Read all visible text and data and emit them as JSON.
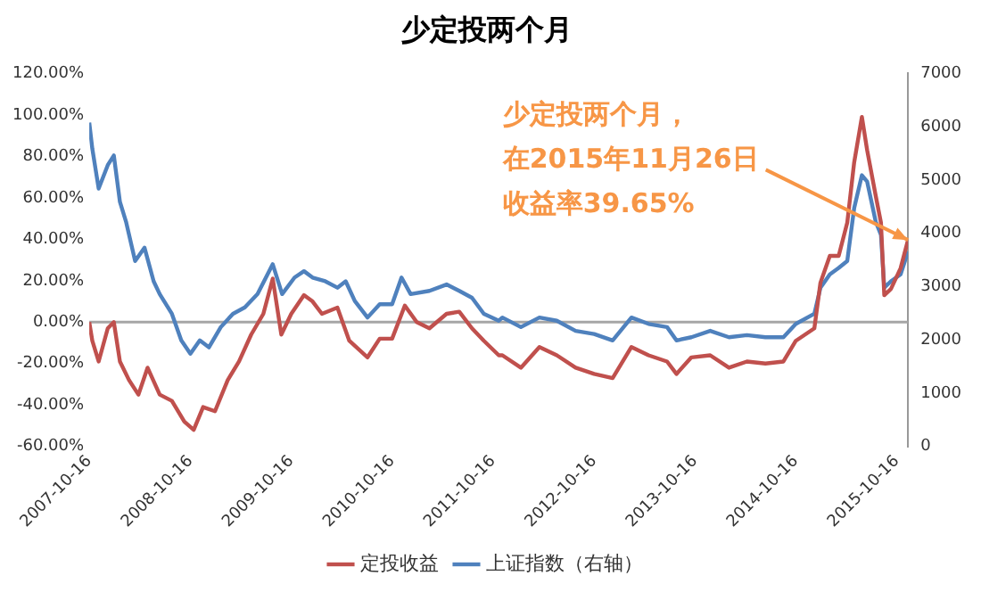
{
  "chart_data": {
    "type": "line",
    "title": "少定投两个月",
    "legend": "bottom",
    "grid": false,
    "marker": "none",
    "line_style": "solid",
    "xlim": [
      "2007-10-16",
      "2015-11-26"
    ],
    "xticks": [
      "2007-10-16",
      "2008-10-16",
      "2009-10-16",
      "2010-10-16",
      "2011-10-16",
      "2012-10-16",
      "2013-10-16",
      "2014-10-16",
      "2015-10-16"
    ],
    "ylim": [
      -60,
      120
    ],
    "yticks": [
      {
        "value": -60,
        "label": "-60.00%"
      },
      {
        "value": -40,
        "label": "-40.00%"
      },
      {
        "value": -20,
        "label": "-20.00%"
      },
      {
        "value": 0,
        "label": "0.00%"
      },
      {
        "value": 20,
        "label": "20.00%"
      },
      {
        "value": 40,
        "label": "40.00%"
      },
      {
        "value": 60,
        "label": "60.00%"
      },
      {
        "value": 80,
        "label": "80.00%"
      },
      {
        "value": 100,
        "label": "100.00%"
      },
      {
        "value": 120,
        "label": "120.00%"
      }
    ],
    "y2lim": [
      0,
      7000
    ],
    "y2ticks": [
      0,
      1000,
      2000,
      3000,
      4000,
      5000,
      6000,
      7000
    ],
    "ref_lines": [
      {
        "axis": "y",
        "value": 0,
        "color": "#a6a6a6"
      }
    ],
    "annotations": [
      {
        "text": "少定投两个月，在2015年11月26日收益率39.65%",
        "x": "2015-11-26",
        "y": 39.65
      }
    ],
    "series": [
      {
        "name": "定投收益",
        "color": "#c0504d",
        "x": [
          "2007-10-16",
          "2007-10-27",
          "2007-11-19",
          "2007-12-22",
          "2008-01-13",
          "2008-02-04",
          "2008-03-08",
          "2008-04-11",
          "2008-05-14",
          "2008-06-27",
          "2008-08-10",
          "2008-09-24",
          "2008-10-28",
          "2008-12-01",
          "2009-01-13",
          "2009-02-28",
          "2009-04-10",
          "2009-05-24",
          "2009-07-07",
          "2009-08-10",
          "2009-09-10",
          "2009-10-16",
          "2009-12-01",
          "2010-01-01",
          "2010-02-04",
          "2010-04-01",
          "2010-05-14",
          "2010-07-19",
          "2010-09-01",
          "2010-10-16",
          "2010-12-01",
          "2011-01-13",
          "2011-02-28",
          "2011-05-01",
          "2011-06-16",
          "2011-08-01",
          "2011-09-13",
          "2011-11-06",
          "2011-11-19",
          "2012-01-25",
          "2012-04-01",
          "2012-06-03",
          "2012-08-10",
          "2012-10-16",
          "2012-12-22",
          "2013-02-28",
          "2013-05-01",
          "2013-07-07",
          "2013-08-10",
          "2013-10-03",
          "2013-12-10",
          "2014-02-16",
          "2014-04-22",
          "2014-06-28",
          "2014-09-01",
          "2014-10-16",
          "2014-12-22",
          "2015-01-13",
          "2015-02-16",
          "2015-03-20",
          "2015-04-20",
          "2015-05-15",
          "2015-06-12",
          "2015-07-01",
          "2015-08-01",
          "2015-08-20",
          "2015-09-01",
          "2015-09-25",
          "2015-10-30",
          "2015-11-26"
        ],
        "values": [
          0,
          -9,
          -19,
          -3,
          0,
          -19,
          -28,
          -35,
          -22,
          -35,
          -38,
          -48,
          -52,
          -41,
          -43,
          -28,
          -19,
          -6,
          4,
          21,
          -6,
          4,
          13,
          10,
          4,
          7,
          -9,
          -17,
          -8,
          -8,
          8,
          0,
          -3,
          4,
          5,
          -3,
          -9,
          -16,
          -16,
          -22,
          -12,
          -16,
          -22,
          -25,
          -27,
          -12,
          -16,
          -19,
          -25,
          -17,
          -16,
          -22,
          -19,
          -20,
          -19,
          -9,
          -3,
          19,
          32,
          32,
          48,
          77,
          99,
          83,
          61,
          48,
          13,
          16,
          26,
          39.65
        ]
      },
      {
        "name": "上证指数（右轴）",
        "color": "#4f81bd",
        "axis": "y2",
        "x": [
          "2007-10-16",
          "2007-10-27",
          "2007-11-19",
          "2007-12-22",
          "2008-01-13",
          "2008-02-04",
          "2008-02-26",
          "2008-03-30",
          "2008-05-03",
          "2008-06-05",
          "2008-06-27",
          "2008-08-10",
          "2008-09-13",
          "2008-10-16",
          "2008-11-19",
          "2008-12-22",
          "2009-02-03",
          "2009-03-19",
          "2009-05-01",
          "2009-06-16",
          "2009-08-10",
          "2009-09-13",
          "2009-10-28",
          "2009-12-01",
          "2010-01-01",
          "2010-02-16",
          "2010-04-01",
          "2010-05-01",
          "2010-06-03",
          "2010-07-19",
          "2010-09-01",
          "2010-10-16",
          "2010-11-19",
          "2010-12-22",
          "2011-02-28",
          "2011-05-01",
          "2011-06-16",
          "2011-08-01",
          "2011-09-13",
          "2011-11-06",
          "2011-11-19",
          "2012-01-25",
          "2012-04-01",
          "2012-06-03",
          "2012-08-10",
          "2012-10-16",
          "2012-12-22",
          "2013-02-28",
          "2013-05-01",
          "2013-07-07",
          "2013-08-10",
          "2013-10-03",
          "2013-12-10",
          "2014-02-16",
          "2014-04-22",
          "2014-06-28",
          "2014-09-01",
          "2014-10-16",
          "2014-12-22",
          "2015-01-13",
          "2015-02-16",
          "2015-03-20",
          "2015-04-20",
          "2015-05-15",
          "2015-06-12",
          "2015-07-01",
          "2015-08-01",
          "2015-08-20",
          "2015-09-01",
          "2015-09-25",
          "2015-10-30",
          "2015-11-26"
        ],
        "values": [
          6080,
          5590,
          4840,
          5280,
          5460,
          4590,
          4220,
          3480,
          3730,
          3100,
          2860,
          2490,
          1990,
          1740,
          1990,
          1860,
          2240,
          2490,
          2610,
          2860,
          3420,
          2860,
          3170,
          3290,
          3170,
          3100,
          2980,
          3100,
          2730,
          2420,
          2670,
          2670,
          3170,
          2860,
          2920,
          3040,
          2920,
          2790,
          2490,
          2360,
          2420,
          2240,
          2420,
          2360,
          2170,
          2110,
          1990,
          2420,
          2300,
          2240,
          1990,
          2050,
          2170,
          2050,
          2090,
          2050,
          2050,
          2300,
          2490,
          2980,
          3230,
          3350,
          3480,
          4470,
          5090,
          4970,
          4220,
          3970,
          2980,
          3100,
          3230,
          3660
        ]
      }
    ]
  }
}
